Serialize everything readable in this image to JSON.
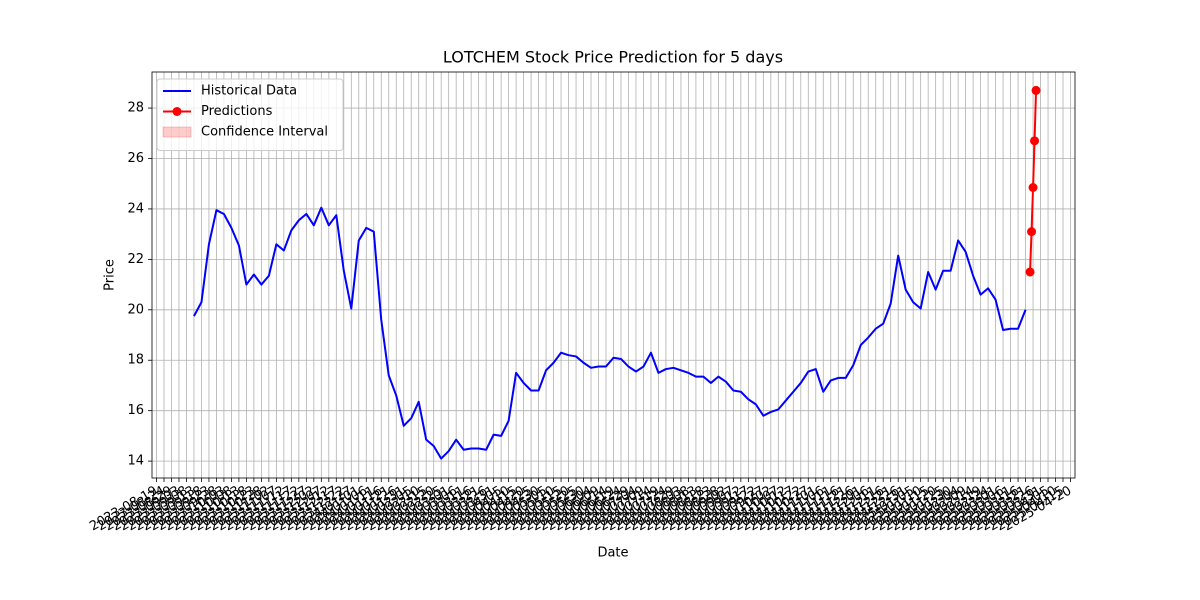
{
  "chart_data": {
    "type": "line",
    "title": "LOTCHEM Stock Price Prediction for 5 days",
    "xlabel": "Date",
    "ylabel": "Price",
    "grid": true,
    "legend": "upper left",
    "xlim": [
      "2023-08-16",
      "2025-04-23"
    ],
    "xticks": [
      "2023-08-19",
      "2023-08-24",
      "2023-08-29",
      "2023-09-03",
      "2023-09-08",
      "2023-09-13",
      "2023-09-18",
      "2023-09-23",
      "2023-09-28",
      "2023-10-03",
      "2023-10-08",
      "2023-10-13",
      "2023-10-18",
      "2023-10-23",
      "2023-10-28",
      "2023-11-02",
      "2023-11-07",
      "2023-11-12",
      "2023-11-17",
      "2023-11-22",
      "2023-11-27",
      "2023-12-02",
      "2023-12-07",
      "2023-12-12",
      "2023-12-17",
      "2023-12-22",
      "2023-12-27",
      "2024-01-01",
      "2024-01-06",
      "2024-01-11",
      "2024-01-16",
      "2024-01-21",
      "2024-01-26",
      "2024-01-31",
      "2024-02-05",
      "2024-02-10",
      "2024-02-15",
      "2024-02-20",
      "2024-02-25",
      "2024-03-01",
      "2024-03-06",
      "2024-03-11",
      "2024-03-16",
      "2024-03-21",
      "2024-03-26",
      "2024-03-31",
      "2024-04-05",
      "2024-04-10",
      "2024-04-15",
      "2024-04-20",
      "2024-04-25",
      "2024-04-30",
      "2024-05-05",
      "2024-05-10",
      "2024-05-15",
      "2024-05-20",
      "2024-05-25",
      "2024-05-30",
      "2024-06-04",
      "2024-06-09",
      "2024-06-14",
      "2024-06-19",
      "2024-06-24",
      "2024-06-29",
      "2024-07-04",
      "2024-07-09",
      "2024-07-14",
      "2024-07-19",
      "2024-07-24",
      "2024-07-29",
      "2024-08-03",
      "2024-08-08",
      "2024-08-13",
      "2024-08-18",
      "2024-08-23",
      "2024-08-28",
      "2024-09-02",
      "2024-09-07",
      "2024-09-12",
      "2024-09-17",
      "2024-09-22",
      "2024-09-27",
      "2024-10-02",
      "2024-10-07",
      "2024-10-12",
      "2024-10-17",
      "2024-10-22",
      "2024-10-27",
      "2024-11-01",
      "2024-11-06",
      "2024-11-11",
      "2024-11-16",
      "2024-11-21",
      "2024-11-26",
      "2024-12-01",
      "2024-12-06",
      "2024-12-11",
      "2024-12-16",
      "2024-12-21",
      "2024-12-26",
      "2024-12-31",
      "2025-01-05",
      "2025-01-10",
      "2025-01-15",
      "2025-01-20",
      "2025-01-25",
      "2025-01-30",
      "2025-02-04",
      "2025-02-09",
      "2025-02-14",
      "2025-02-19",
      "2025-02-24",
      "2025-03-01",
      "2025-03-06",
      "2025-03-11",
      "2025-03-16",
      "2025-03-21",
      "2025-03-26",
      "2025-03-31",
      "2025-04-05",
      "2025-04-10",
      "2025-04-15",
      "2025-04-20"
    ],
    "ylim": [
      13.33,
      29.43
    ],
    "yticks": [
      14,
      16,
      18,
      20,
      22,
      24,
      26,
      28
    ],
    "series": [
      {
        "name": "Historical Data",
        "color": "#0000ff",
        "marker": "none",
        "x": [
          "2023-09-13",
          "2023-09-18",
          "2023-09-23",
          "2023-09-28",
          "2023-10-03",
          "2023-10-08",
          "2023-10-13",
          "2023-10-18",
          "2023-10-23",
          "2023-10-28",
          "2023-11-02",
          "2023-11-07",
          "2023-11-12",
          "2023-11-17",
          "2023-11-22",
          "2023-11-27",
          "2023-12-02",
          "2023-12-07",
          "2023-12-12",
          "2023-12-17",
          "2023-12-22",
          "2023-12-27",
          "2024-01-01",
          "2024-01-06",
          "2024-01-11",
          "2024-01-16",
          "2024-01-21",
          "2024-01-26",
          "2024-01-31",
          "2024-02-05",
          "2024-02-10",
          "2024-02-15",
          "2024-02-20",
          "2024-02-25",
          "2024-03-01",
          "2024-03-06",
          "2024-03-11",
          "2024-03-16",
          "2024-03-21",
          "2024-03-26",
          "2024-03-31",
          "2024-04-05",
          "2024-04-10",
          "2024-04-15",
          "2024-04-20",
          "2024-04-25",
          "2024-04-30",
          "2024-05-05",
          "2024-05-10",
          "2024-05-15",
          "2024-05-20",
          "2024-05-25",
          "2024-05-30",
          "2024-06-04",
          "2024-06-09",
          "2024-06-14",
          "2024-06-19",
          "2024-06-24",
          "2024-06-29",
          "2024-07-04",
          "2024-07-09",
          "2024-07-14",
          "2024-07-19",
          "2024-07-24",
          "2024-07-29",
          "2024-08-03",
          "2024-08-08",
          "2024-08-13",
          "2024-08-18",
          "2024-08-23",
          "2024-08-28",
          "2024-09-02",
          "2024-09-07",
          "2024-09-12",
          "2024-09-17",
          "2024-09-22",
          "2024-09-27",
          "2024-10-02",
          "2024-10-07",
          "2024-10-12",
          "2024-10-17",
          "2024-10-22",
          "2024-10-27",
          "2024-11-01",
          "2024-11-06",
          "2024-11-11",
          "2024-11-16",
          "2024-11-21",
          "2024-11-26",
          "2024-12-01",
          "2024-12-06",
          "2024-12-11",
          "2024-12-16",
          "2024-12-21",
          "2024-12-26",
          "2024-12-31",
          "2025-01-05",
          "2025-01-10",
          "2025-01-15",
          "2025-01-20",
          "2025-01-25",
          "2025-01-30",
          "2025-02-04",
          "2025-02-09",
          "2025-02-14",
          "2025-02-19",
          "2025-02-24",
          "2025-03-01",
          "2025-03-06",
          "2025-03-11",
          "2025-03-16",
          "2025-03-21"
        ],
        "values": [
          19.75,
          20.3,
          22.6,
          23.95,
          23.8,
          23.25,
          22.55,
          21.0,
          21.4,
          21.0,
          21.35,
          22.6,
          22.35,
          23.15,
          23.55,
          23.8,
          23.35,
          24.05,
          23.35,
          23.75,
          21.55,
          20.05,
          22.75,
          23.25,
          23.1,
          19.6,
          17.4,
          16.6,
          15.4,
          15.7,
          16.35,
          14.85,
          14.6,
          14.1,
          14.4,
          14.85,
          14.45,
          14.5,
          14.5,
          14.45,
          15.05,
          15.0,
          15.6,
          17.5,
          17.1,
          16.8,
          16.8,
          17.6,
          17.9,
          18.3,
          18.2,
          18.15,
          17.9,
          17.7,
          17.75,
          17.75,
          18.1,
          18.05,
          17.75,
          17.55,
          17.75,
          18.3,
          17.5,
          17.65,
          17.7,
          17.6,
          17.5,
          17.35,
          17.35,
          17.1,
          17.35,
          17.15,
          16.8,
          16.75,
          16.45,
          16.25,
          15.8,
          15.95,
          16.05,
          16.4,
          16.75,
          17.1,
          17.55,
          17.65,
          16.75,
          17.2,
          17.3,
          17.3,
          17.8,
          18.6,
          18.9,
          19.25,
          19.45,
          20.25,
          22.15,
          20.8,
          20.3,
          20.05,
          21.5,
          20.8,
          21.55,
          21.55,
          22.75,
          22.3,
          21.35,
          20.6,
          20.85,
          20.4,
          19.2,
          19.25,
          19.25,
          20.0
        ]
      },
      {
        "name": "Predictions",
        "color": "#ff0000",
        "marker": "o",
        "x": [
          "2025-03-24",
          "2025-03-25",
          "2025-03-26",
          "2025-03-27",
          "2025-03-28"
        ],
        "values": [
          21.5,
          23.1,
          24.85,
          26.7,
          28.7
        ]
      },
      {
        "name": "Confidence Interval",
        "color": "#ff0000",
        "marker": "band",
        "alpha": 0.2,
        "x": [],
        "values": []
      }
    ]
  }
}
